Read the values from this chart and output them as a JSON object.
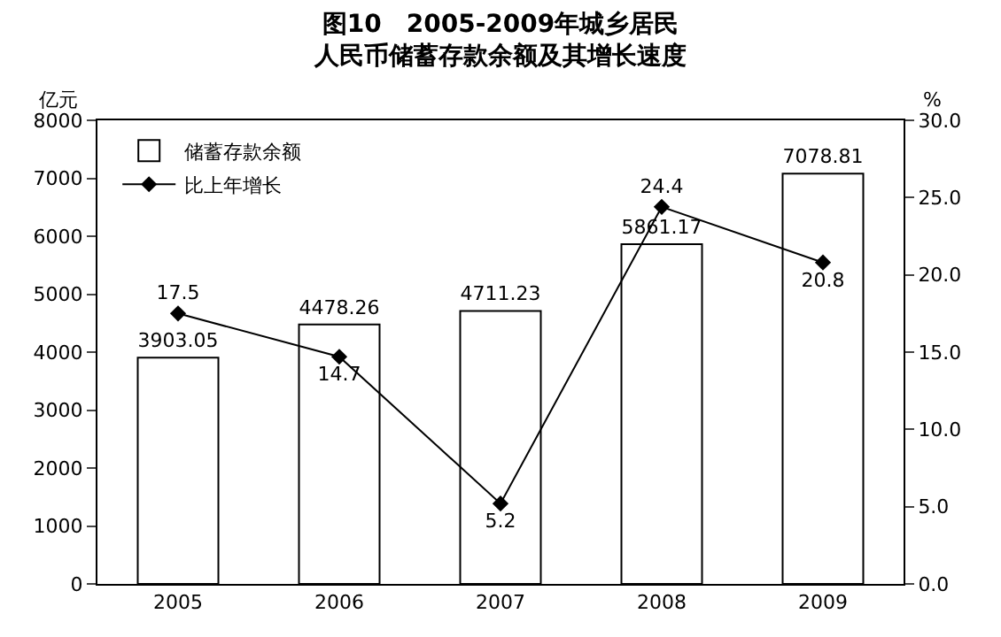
{
  "chart_data": {
    "type": "bar",
    "title": "图10　2005-2009年城乡居民",
    "subtitle": "人民币储蓄存款余额及其增长速度",
    "ylabel": "亿元",
    "y2label": "%",
    "categories": [
      "2005",
      "2006",
      "2007",
      "2008",
      "2009"
    ],
    "series": [
      {
        "name": "储蓄存款余额",
        "color": "#ffffff",
        "values": [
          3903.05,
          4478.26,
          4711.23,
          5861.17,
          7078.81
        ]
      },
      {
        "name": "比上年增长",
        "color": "#000000",
        "type": "line",
        "axis": "y2",
        "values": [
          17.5,
          14.7,
          5.2,
          24.4,
          20.8
        ]
      }
    ],
    "ylim": [
      0,
      8000
    ],
    "yticks": [
      0,
      1000,
      2000,
      3000,
      4000,
      5000,
      6000,
      7000,
      8000
    ],
    "y2lim": [
      0,
      30
    ],
    "y2ticks": [
      {
        "value": 0,
        "label": "0.0"
      },
      {
        "value": 5,
        "label": "5.0"
      },
      {
        "value": 10,
        "label": "10.0"
      },
      {
        "value": 15,
        "label": "15.0"
      },
      {
        "value": 20,
        "label": "20.0"
      },
      {
        "value": 25,
        "label": "25.0"
      },
      {
        "value": 30,
        "label": "30.0"
      }
    ],
    "data_labels": true,
    "legend": "top left",
    "marker": "diamond",
    "line_style": "solid"
  }
}
